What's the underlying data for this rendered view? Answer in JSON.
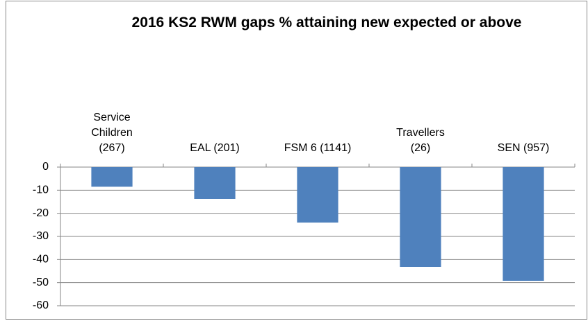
{
  "chart_data": {
    "type": "bar",
    "title": "2016 KS2 RWM gaps % attaining new expected or above",
    "categories": [
      "Service Children (267)",
      "EAL (201)",
      "FSM 6 (1141)",
      "Travellers (26)",
      "SEN (957)"
    ],
    "values": [
      -8.5,
      -13.8,
      -24,
      -43.2,
      -49.2
    ],
    "color": "#4f81bd",
    "ylim": [
      -60,
      0
    ],
    "yticks": [
      0,
      -10,
      -20,
      -30,
      -40,
      -50,
      -60
    ],
    "grid": true
  }
}
